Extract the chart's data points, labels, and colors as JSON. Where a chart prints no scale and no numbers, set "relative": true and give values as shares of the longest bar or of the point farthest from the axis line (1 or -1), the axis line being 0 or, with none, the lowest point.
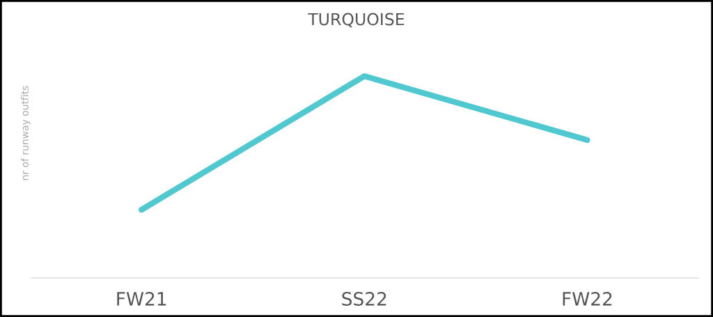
{
  "chart_data": {
    "type": "line",
    "title": "TURQUOISE",
    "ylabel": "nr of runway outfits",
    "relative": true,
    "categories": [
      "FW21",
      "SS22",
      "FW22"
    ],
    "series": [
      {
        "color": "#4fc8cf",
        "values": [
          0.338,
          1,
          0.683
        ]
      }
    ],
    "grid": false,
    "legend": false,
    "marker": "none",
    "line_style": "solid"
  }
}
